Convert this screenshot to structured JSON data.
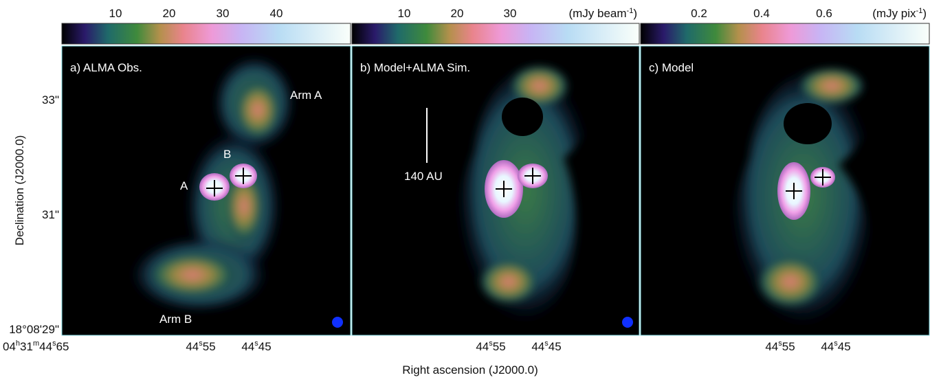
{
  "colorbars": [
    {
      "ticks": [
        "10",
        "20",
        "30",
        "40"
      ]
    },
    {
      "ticks": [
        "10",
        "20",
        "30"
      ],
      "unit": [
        "(mJy beam",
        "-1",
        ")"
      ]
    },
    {
      "ticks": [
        "0.2",
        "0.4",
        "0.6"
      ],
      "unit": [
        "(mJy pix",
        "-1",
        ")"
      ]
    }
  ],
  "panels": [
    {
      "label": "a) ALMA Obs.",
      "annotations": [
        "Arm A",
        "Arm B",
        "A",
        "B"
      ]
    },
    {
      "label": "b) Model+ALMA Sim.",
      "annotations": [
        "140 AU"
      ]
    },
    {
      "label": "c) Model"
    }
  ],
  "y_axis": {
    "label": "Declination (J2000.0)",
    "ticks": [
      "33\"",
      "31\"",
      "18°08'29\""
    ]
  },
  "x_axis": {
    "label": "Right ascension (J2000.0)",
    "first_tick": [
      "04",
      "h",
      "31",
      "m",
      "44",
      "s",
      "65"
    ],
    "ticks": [
      [
        "44",
        "s",
        "55"
      ],
      [
        "44",
        "s",
        "45"
      ]
    ]
  }
}
